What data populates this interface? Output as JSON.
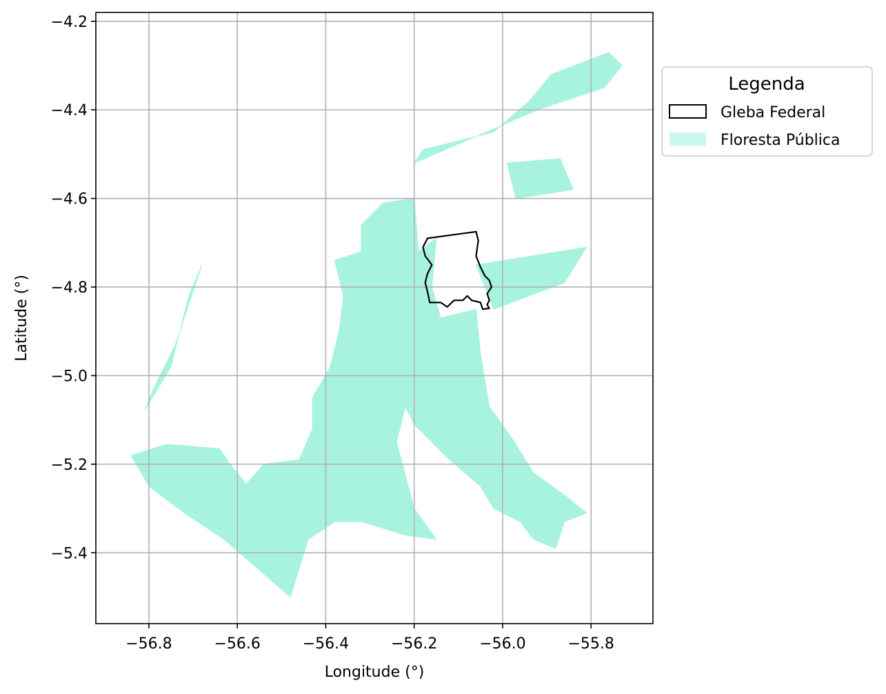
{
  "figure": {
    "xlabel": "Longitude (°)",
    "ylabel": "Latitude (°)",
    "x_ticks": [
      "−56.8",
      "−56.6",
      "−56.4",
      "−56.2",
      "−56.0",
      "−55.8"
    ],
    "y_ticks": [
      "−4.2",
      "−4.4",
      "−4.6",
      "−4.8",
      "−5.0",
      "−5.2",
      "−5.4"
    ]
  },
  "legend": {
    "title": "Legenda",
    "items": [
      {
        "label": "Gleba Federal",
        "style": "outline",
        "color": "#000000"
      },
      {
        "label": "Floresta Pública",
        "style": "fill",
        "color": "#a8f3df"
      }
    ]
  },
  "chart_data": {
    "type": "map",
    "xlabel": "Longitude (°)",
    "ylabel": "Latitude (°)",
    "xlim": [
      -56.92,
      -55.66
    ],
    "ylim": [
      -5.56,
      -4.18
    ],
    "x_ticks": [
      -56.8,
      -56.6,
      -56.4,
      -56.2,
      -56.0,
      -55.8
    ],
    "y_ticks": [
      -4.2,
      -4.4,
      -4.6,
      -4.8,
      -5.0,
      -5.2,
      -5.4
    ],
    "grid": true,
    "legend_position": "outside-right-top",
    "colors": {
      "floresta_publica": "#a8f3df",
      "gleba_federal": "#000000",
      "grid": "#b0b0b0"
    },
    "layers": [
      {
        "name": "Gleba Federal",
        "style": "outline",
        "polygons": [
          [
            [
              -56.17,
              -4.69
            ],
            [
              -56.06,
              -4.675
            ],
            [
              -56.055,
              -4.695
            ],
            [
              -56.06,
              -4.73
            ],
            [
              -56.05,
              -4.755
            ],
            [
              -56.04,
              -4.775
            ],
            [
              -56.03,
              -4.785
            ],
            [
              -56.025,
              -4.8
            ],
            [
              -56.035,
              -4.815
            ],
            [
              -56.03,
              -4.83
            ],
            [
              -56.035,
              -4.84
            ],
            [
              -56.03,
              -4.848
            ],
            [
              -56.045,
              -4.85
            ],
            [
              -56.05,
              -4.835
            ],
            [
              -56.07,
              -4.83
            ],
            [
              -56.08,
              -4.82
            ],
            [
              -56.09,
              -4.83
            ],
            [
              -56.11,
              -4.83
            ],
            [
              -56.125,
              -4.845
            ],
            [
              -56.14,
              -4.835
            ],
            [
              -56.165,
              -4.835
            ],
            [
              -56.17,
              -4.81
            ],
            [
              -56.175,
              -4.79
            ],
            [
              -56.17,
              -4.77
            ],
            [
              -56.16,
              -4.75
            ],
            [
              -56.175,
              -4.73
            ],
            [
              -56.18,
              -4.71
            ],
            [
              -56.17,
              -4.69
            ]
          ]
        ]
      },
      {
        "name": "Floresta Pública",
        "style": "fill",
        "polygons": [
          [
            [
              -56.76,
              -5.155
            ],
            [
              -56.64,
              -5.165
            ],
            [
              -56.62,
              -5.195
            ],
            [
              -56.58,
              -5.245
            ],
            [
              -56.54,
              -5.2
            ],
            [
              -56.46,
              -5.19
            ],
            [
              -56.43,
              -5.12
            ],
            [
              -56.43,
              -5.05
            ],
            [
              -56.39,
              -4.98
            ],
            [
              -56.37,
              -4.9
            ],
            [
              -56.36,
              -4.82
            ],
            [
              -56.38,
              -4.74
            ],
            [
              -56.32,
              -4.72
            ],
            [
              -56.32,
              -4.66
            ],
            [
              -56.27,
              -4.61
            ],
            [
              -56.2,
              -4.6
            ],
            [
              -56.19,
              -4.72
            ],
            [
              -56.15,
              -4.69
            ],
            [
              -56.16,
              -4.8
            ],
            [
              -56.14,
              -4.87
            ],
            [
              -56.06,
              -4.85
            ],
            [
              -56.05,
              -4.95
            ],
            [
              -56.03,
              -5.07
            ],
            [
              -55.98,
              -5.14
            ],
            [
              -55.93,
              -5.22
            ],
            [
              -55.86,
              -5.27
            ],
            [
              -55.81,
              -5.31
            ],
            [
              -55.86,
              -5.33
            ],
            [
              -55.88,
              -5.39
            ],
            [
              -55.93,
              -5.37
            ],
            [
              -55.96,
              -5.33
            ],
            [
              -56.02,
              -5.3
            ],
            [
              -56.05,
              -5.25
            ],
            [
              -56.12,
              -5.19
            ],
            [
              -56.2,
              -5.11
            ],
            [
              -56.22,
              -5.07
            ],
            [
              -56.24,
              -5.15
            ],
            [
              -56.2,
              -5.3
            ],
            [
              -56.15,
              -5.37
            ],
            [
              -56.22,
              -5.36
            ],
            [
              -56.32,
              -5.33
            ],
            [
              -56.38,
              -5.33
            ],
            [
              -56.44,
              -5.37
            ],
            [
              -56.48,
              -5.5
            ],
            [
              -56.63,
              -5.37
            ],
            [
              -56.72,
              -5.31
            ],
            [
              -56.8,
              -5.25
            ],
            [
              -56.84,
              -5.18
            ]
          ],
          [
            [
              -56.68,
              -4.75
            ],
            [
              -56.71,
              -4.82
            ],
            [
              -56.75,
              -4.98
            ],
            [
              -56.81,
              -5.08
            ],
            [
              -56.79,
              -5.03
            ],
            [
              -56.74,
              -4.93
            ],
            [
              -56.7,
              -4.81
            ]
          ],
          [
            [
              -56.28,
              -4.78
            ],
            [
              -56.2,
              -4.78
            ],
            [
              -56.2,
              -4.72
            ],
            [
              -56.3,
              -4.74
            ],
            [
              -56.33,
              -4.76
            ]
          ],
          [
            [
              -56.06,
              -4.75
            ],
            [
              -55.81,
              -4.71
            ],
            [
              -55.86,
              -4.79
            ],
            [
              -56.02,
              -4.85
            ]
          ],
          [
            [
              -56.2,
              -4.52
            ],
            [
              -55.92,
              -4.4
            ],
            [
              -55.77,
              -4.35
            ],
            [
              -55.73,
              -4.3
            ],
            [
              -55.76,
              -4.27
            ],
            [
              -55.89,
              -4.32
            ],
            [
              -55.94,
              -4.38
            ],
            [
              -56.02,
              -4.45
            ],
            [
              -56.18,
              -4.49
            ]
          ],
          [
            [
              -55.99,
              -4.52
            ],
            [
              -55.87,
              -4.51
            ],
            [
              -55.84,
              -4.58
            ],
            [
              -55.97,
              -4.6
            ]
          ]
        ]
      }
    ]
  }
}
